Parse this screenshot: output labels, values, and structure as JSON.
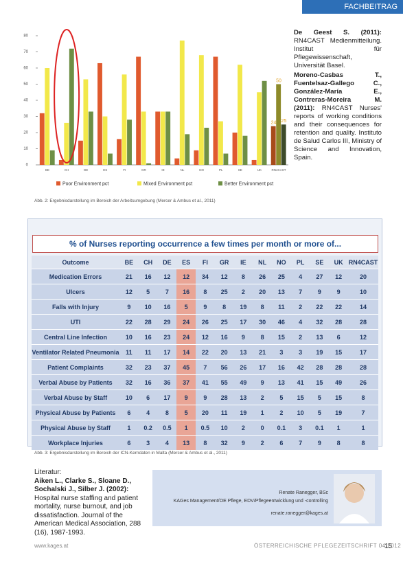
{
  "header": {
    "section": "FACHBEITRAG"
  },
  "chart_data": {
    "type": "bar",
    "categories": [
      "BE",
      "CH",
      "DE",
      "ES",
      "FI",
      "GR",
      "IE",
      "NL",
      "NO",
      "PL",
      "SE",
      "UK",
      "RN4CAST"
    ],
    "series": [
      {
        "name": "Poor Environment pct",
        "color": "#e05a2e",
        "highlight_color": "#a84b1a",
        "values": [
          32,
          3,
          15,
          63,
          16,
          67,
          33,
          4,
          9,
          67,
          20,
          3,
          24
        ],
        "value_labels": [
          null,
          null,
          null,
          null,
          null,
          null,
          null,
          null,
          null,
          null,
          null,
          null,
          "24"
        ]
      },
      {
        "name": "Mixed Environment pct",
        "color": "#f2e84a",
        "highlight_color": "#8d8a2a",
        "values": [
          60,
          26,
          53,
          30,
          56,
          33,
          33,
          77,
          68,
          27,
          62,
          45,
          50
        ],
        "value_labels": [
          null,
          null,
          null,
          null,
          null,
          null,
          null,
          null,
          null,
          null,
          null,
          null,
          "50"
        ]
      },
      {
        "name": "Better Environment pct",
        "color": "#6e8f45",
        "highlight_color": "#3d4a2a",
        "values": [
          9,
          72,
          33,
          7,
          28,
          1,
          33,
          19,
          23,
          7,
          18,
          52,
          25
        ],
        "value_labels": [
          null,
          null,
          null,
          null,
          null,
          null,
          null,
          null,
          null,
          null,
          null,
          null,
          "25"
        ]
      }
    ],
    "ylim": [
      0,
      80
    ],
    "yticks": [
      0,
      10,
      20,
      30,
      40,
      50,
      60,
      70,
      80
    ],
    "grid": false
  },
  "caption1": "Abb. 2: Ergebnisdarstellung im Bereich der Arbeitsumgebung (Mercer & Ambus et al., 2011)",
  "references": [
    {
      "author": "De Geest S. (2011):",
      "text": "RN4CAST Medienmitteilung. Institut für Pflegewissenschaft, Universität Basel."
    },
    {
      "author": "Moreno-Casbas T., Fuentelsaz-Gallego C., González-María E., Contreras-Moreira M. (2011):",
      "text": "RN4CAST Nurses' reports of working conditions and their consequences for retention and quality. Instituto de Salud Carlos III, Ministry of Science and Innovation, Spain."
    }
  ],
  "table": {
    "title": "% of Nurses reporting occurrence a few times per month or more of...",
    "columns": [
      "Outcome",
      "BE",
      "CH",
      "DE",
      "ES",
      "FI",
      "GR",
      "IE",
      "NL",
      "NO",
      "PL",
      "SE",
      "UK",
      "RN4CAST"
    ],
    "rows": [
      [
        "Medication Errors",
        21,
        16,
        12,
        12,
        34,
        12,
        8,
        26,
        25,
        4,
        27,
        12,
        20
      ],
      [
        "Ulcers",
        12,
        5,
        7,
        16,
        8,
        25,
        2,
        20,
        13,
        7,
        9,
        9,
        10
      ],
      [
        "Falls with Injury",
        9,
        10,
        16,
        5,
        9,
        8,
        19,
        8,
        11,
        2,
        22,
        22,
        14
      ],
      [
        "UTI",
        22,
        28,
        29,
        24,
        26,
        25,
        17,
        30,
        46,
        4,
        32,
        28,
        28
      ],
      [
        "Central Line Infection",
        10,
        16,
        23,
        24,
        12,
        16,
        9,
        8,
        15,
        2,
        13,
        6,
        12
      ],
      [
        "Ventilator Related Pneumonia",
        11,
        11,
        17,
        14,
        22,
        20,
        13,
        21,
        3,
        3,
        19,
        15,
        17
      ],
      [
        "Patient Complaints",
        32,
        23,
        37,
        45,
        7,
        56,
        26,
        17,
        16,
        42,
        28,
        28,
        28
      ],
      [
        "Verbal Abuse by Patients",
        32,
        16,
        36,
        37,
        41,
        55,
        49,
        9,
        13,
        41,
        15,
        49,
        26
      ],
      [
        "Verbal Abuse by Staff",
        10,
        6,
        17,
        9,
        9,
        28,
        13,
        2,
        5,
        15,
        5,
        15,
        8
      ],
      [
        "Physical Abuse by Patients",
        6,
        4,
        8,
        5,
        20,
        11,
        19,
        1,
        2,
        10,
        5,
        19,
        7
      ],
      [
        "Physical Abuse by Staff",
        1,
        0.2,
        0.5,
        1,
        0.5,
        10,
        2,
        0,
        0.1,
        3,
        0.1,
        1,
        1
      ],
      [
        "Workplace Injuries",
        6,
        3,
        4,
        13,
        8,
        32,
        9,
        2,
        6,
        7,
        9,
        8,
        8
      ]
    ]
  },
  "caption2": "Abb. 3: Ergebnisdarstellung im Bereich der ICN-Kerndaten in Malta (Mercer & Ambus et al., 2011)",
  "literature": {
    "heading": "Literatur:",
    "author": "Aiken L., Clarke S., Sloane D., Sochalski J., Silber J. (2002):",
    "text": "Hospital nurse staffing and patient mortality, nurse burnout, and job dissatisfaction. Journal of the American Medical Association, 288 (16), 1987-1993."
  },
  "author_box": {
    "name": "Renate Ranegger, BSc",
    "role": "KAGes Management/OE Pflege, EDV/Pflegeentwicklung und -controlling",
    "email": "renate.ranegger@kages.at"
  },
  "footer": {
    "site": "www.kages.at",
    "journal": "ÖSTERREICHISCHE PFLEGEZEITSCHRIFT 04/2012",
    "page": "15"
  }
}
